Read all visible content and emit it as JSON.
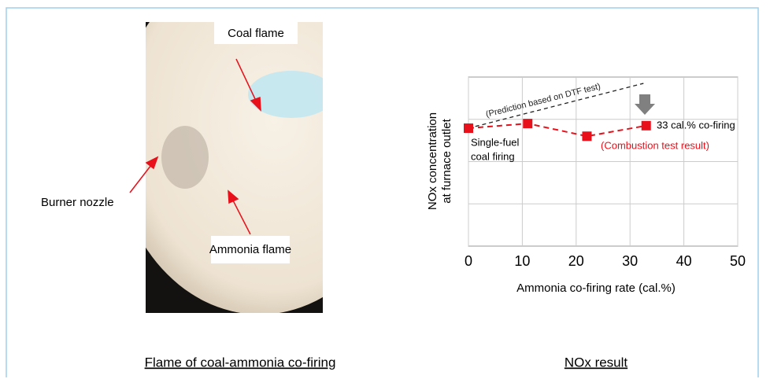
{
  "photo": {
    "labels": [
      "Coal flame",
      "Burner nozzle",
      "Ammonia flame"
    ]
  },
  "captions": [
    "Flame of coal-ammonia co-firing",
    "NOx result"
  ],
  "chart_data": {
    "type": "line",
    "xlabel": "Ammonia co-firing rate (cal.%)",
    "ylabel": [
      "NOx concentration",
      "at furnace outlet"
    ],
    "xlim": [
      0,
      50
    ],
    "xticks": [
      0,
      10,
      20,
      30,
      40,
      50
    ],
    "ylim": [
      0,
      4
    ],
    "ygrid": [
      1,
      2,
      3
    ],
    "grid": true,
    "series": [
      {
        "name": "(Prediction based on DTF test)",
        "color": "#222222",
        "x": [
          0,
          32.5
        ],
        "values": [
          2.79,
          3.85
        ],
        "markers": false
      },
      {
        "name": "(Combustion test result)",
        "color": "#e8101a",
        "x": [
          0,
          11,
          22,
          33
        ],
        "values": [
          2.79,
          2.9,
          2.6,
          2.85
        ],
        "markers": true
      }
    ],
    "annotations": [
      "33 cal.% co-firing",
      "Single-fuel",
      "coal firing"
    ]
  }
}
